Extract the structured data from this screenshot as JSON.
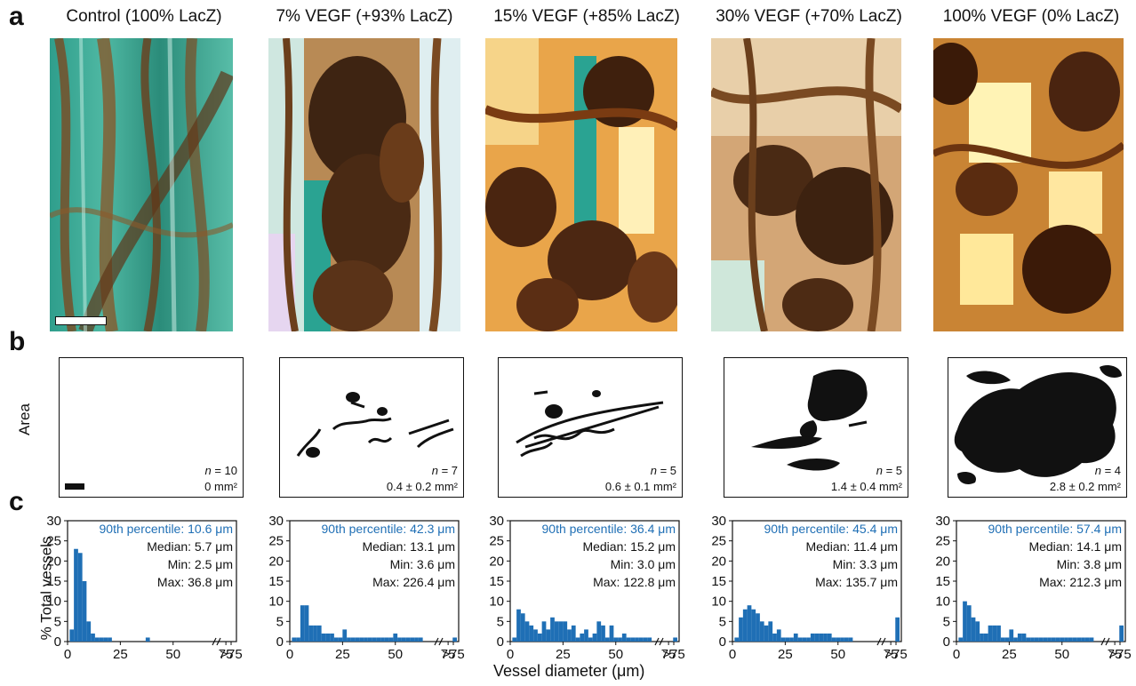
{
  "panels": {
    "a": "a",
    "b": "b",
    "c": "c"
  },
  "columns": [
    {
      "title": "Control (100% LacZ)",
      "n_label": "n",
      "n_value": "= 10",
      "area": "0 mm²",
      "p90": "90th percentile: 10.6 μm",
      "median": "Median: 5.7 μm",
      "min": "Min: 2.5 μm",
      "max": "Max: 36.8 μm"
    },
    {
      "title": "7% VEGF (+93% LacZ)",
      "n_label": "n",
      "n_value": "= 7",
      "area": "0.4 ± 0.2 mm²",
      "p90": "90th percentile: 42.3 μm",
      "median": "Median: 13.1 μm",
      "min": "Min: 3.6 μm",
      "max": "Max: 226.4 μm"
    },
    {
      "title": "15% VEGF (+85% LacZ)",
      "n_label": "n",
      "n_value": "= 5",
      "area": "0.6 ± 0.1 mm²",
      "p90": "90th percentile: 36.4 μm",
      "median": "Median: 15.2 μm",
      "min": "Min: 3.0 μm",
      "max": "Max: 122.8 μm"
    },
    {
      "title": "30% VEGF (+70% LacZ)",
      "n_label": "n",
      "n_value": "= 5",
      "area": "1.4 ± 0.4 mm²",
      "p90": "90th percentile: 45.4 μm",
      "median": "Median: 11.4 μm",
      "min": "Min: 3.3 μm",
      "max": "Max: 135.7 μm"
    },
    {
      "title": "100% VEGF (0% LacZ)",
      "n_label": "n",
      "n_value": "= 4",
      "area": "2.8 ± 0.2 mm²",
      "p90": "90th percentile: 57.4 μm",
      "median": "Median: 14.1 μm",
      "min": "Min: 3.8 μm",
      "max": "Max: 212.3 μm"
    }
  ],
  "area_axis_label": "Area",
  "colors": {
    "stat_blue": "#1f6fb5",
    "bar": "#1f6fb5",
    "silhouette": "#111111"
  },
  "chart_data": [
    {
      "type": "bar",
      "xlabel": "Vessel diameter (μm)",
      "ylabel": "% Total vessels",
      "ylim": [
        0,
        30
      ],
      "yticks": [
        "0",
        "5",
        "10",
        "15",
        "20",
        "25",
        "30"
      ],
      "xticks": [
        "0",
        "25",
        "50",
        "75",
        ">75"
      ],
      "x": [
        2,
        4,
        6,
        8,
        10,
        12,
        14,
        16,
        18,
        20,
        38,
        77
      ],
      "values": [
        3,
        23,
        22,
        15,
        5,
        2,
        1,
        1,
        1,
        1,
        1,
        0
      ]
    },
    {
      "type": "bar",
      "xlabel": "Vessel diameter (μm)",
      "ylabel": "% Total vessels",
      "ylim": [
        0,
        30
      ],
      "yticks": [
        "0",
        "5",
        "10",
        "15",
        "20",
        "25",
        "30"
      ],
      "xticks": [
        "0",
        "25",
        "50",
        "75",
        ">75"
      ],
      "x": [
        2,
        4,
        6,
        8,
        10,
        12,
        14,
        16,
        18,
        20,
        22,
        24,
        26,
        28,
        30,
        32,
        34,
        36,
        38,
        40,
        42,
        44,
        46,
        48,
        50,
        52,
        54,
        56,
        58,
        60,
        62,
        77
      ],
      "values": [
        1,
        1,
        9,
        9,
        4,
        4,
        4,
        2,
        2,
        2,
        1,
        1,
        3,
        1,
        1,
        1,
        1,
        1,
        1,
        1,
        1,
        1,
        1,
        1,
        2,
        1,
        1,
        1,
        1,
        1,
        1,
        1
      ]
    },
    {
      "type": "bar",
      "xlabel": "Vessel diameter (μm)",
      "ylabel": "% Total vessels",
      "ylim": [
        0,
        30
      ],
      "yticks": [
        "0",
        "5",
        "10",
        "15",
        "20",
        "25",
        "30"
      ],
      "xticks": [
        "0",
        "25",
        "50",
        "75",
        ">75"
      ],
      "x": [
        2,
        4,
        6,
        8,
        10,
        12,
        14,
        16,
        18,
        20,
        22,
        24,
        26,
        28,
        30,
        32,
        34,
        36,
        38,
        40,
        42,
        44,
        46,
        48,
        50,
        52,
        54,
        56,
        58,
        60,
        62,
        64,
        66,
        77
      ],
      "values": [
        1,
        8,
        7,
        5,
        4,
        3,
        2,
        5,
        3,
        6,
        5,
        5,
        5,
        3,
        4,
        1,
        2,
        3,
        1,
        2,
        5,
        4,
        1,
        4,
        1,
        1,
        2,
        1,
        1,
        1,
        1,
        1,
        1,
        1
      ]
    },
    {
      "type": "bar",
      "xlabel": "Vessel diameter (μm)",
      "ylabel": "% Total vessels",
      "ylim": [
        0,
        30
      ],
      "yticks": [
        "0",
        "5",
        "10",
        "15",
        "20",
        "25",
        "30"
      ],
      "xticks": [
        "0",
        "25",
        "50",
        "75",
        ">75"
      ],
      "x": [
        2,
        4,
        6,
        8,
        10,
        12,
        14,
        16,
        18,
        20,
        22,
        24,
        26,
        28,
        30,
        32,
        34,
        36,
        38,
        40,
        42,
        44,
        46,
        48,
        50,
        52,
        54,
        56,
        77
      ],
      "values": [
        1,
        6,
        8,
        9,
        8,
        7,
        5,
        4,
        5,
        2,
        3,
        1,
        1,
        1,
        2,
        1,
        1,
        1,
        2,
        2,
        2,
        2,
        2,
        1,
        1,
        1,
        1,
        1,
        6
      ]
    },
    {
      "type": "bar",
      "xlabel": "Vessel diameter (μm)",
      "ylabel": "% Total vessels",
      "ylim": [
        0,
        30
      ],
      "yticks": [
        "0",
        "5",
        "10",
        "15",
        "20",
        "25",
        "30"
      ],
      "xticks": [
        "0",
        "25",
        "50",
        "75",
        ">75"
      ],
      "x": [
        2,
        4,
        6,
        8,
        10,
        12,
        14,
        16,
        18,
        20,
        22,
        24,
        26,
        28,
        30,
        32,
        34,
        36,
        38,
        40,
        42,
        44,
        46,
        48,
        50,
        52,
        54,
        56,
        58,
        60,
        62,
        64,
        77
      ],
      "values": [
        1,
        10,
        9,
        6,
        5,
        2,
        2,
        4,
        4,
        4,
        1,
        1,
        3,
        1,
        2,
        2,
        1,
        1,
        1,
        1,
        1,
        1,
        1,
        1,
        1,
        1,
        1,
        1,
        1,
        1,
        1,
        1,
        4
      ]
    }
  ]
}
